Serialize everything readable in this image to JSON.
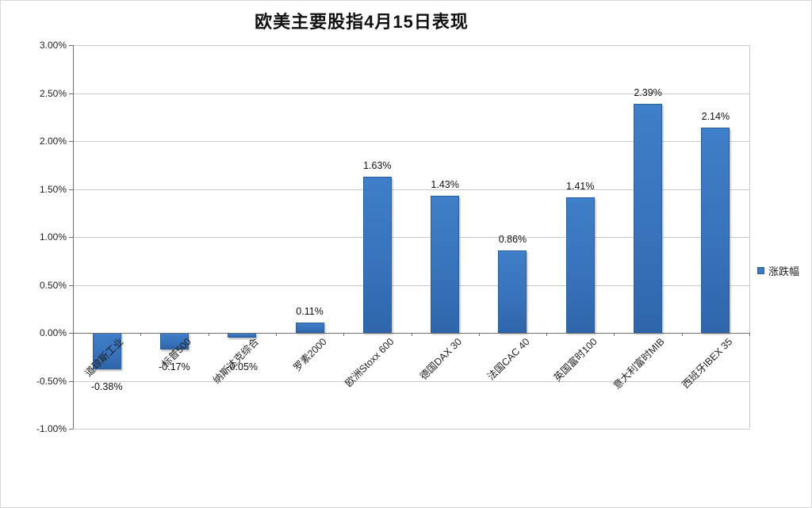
{
  "chart_data": {
    "type": "bar",
    "title": "欧美主要股指4月15日表现",
    "categories": [
      "道琼斯工业",
      "标普500",
      "纳斯达克综合",
      "罗素2000",
      "欧洲Stoxx 600",
      "德国DAX 30",
      "法国CAC 40",
      "英国富时100",
      "意大利富时MIB",
      "西班牙IBEX 35"
    ],
    "series": [
      {
        "name": "涨跌幅",
        "values": [
          -0.38,
          -0.17,
          -0.05,
          0.11,
          1.63,
          1.43,
          0.86,
          1.41,
          2.39,
          2.14
        ],
        "data_labels": [
          "-0.38%",
          "-0.17%",
          "-0.05%",
          "0.11%",
          "1.63%",
          "1.43%",
          "0.86%",
          "1.41%",
          "2.39%",
          "2.14%"
        ]
      }
    ],
    "xlabel": "",
    "ylabel": "",
    "y_ticks": [
      "3.00%",
      "2.50%",
      "2.00%",
      "1.50%",
      "1.00%",
      "0.50%",
      "0.00%",
      "-0.50%",
      "-1.00%"
    ],
    "ylim": [
      -1.0,
      3.0
    ],
    "y_tick_step": 0.5,
    "grid": true,
    "legend_position": "right",
    "colors": {
      "bar": "#3a78c2",
      "bar_border": "#2a5d9c",
      "gridline": "#c9c9c9",
      "axis": "#6e6e6e",
      "text": "#1f1f1f"
    }
  }
}
